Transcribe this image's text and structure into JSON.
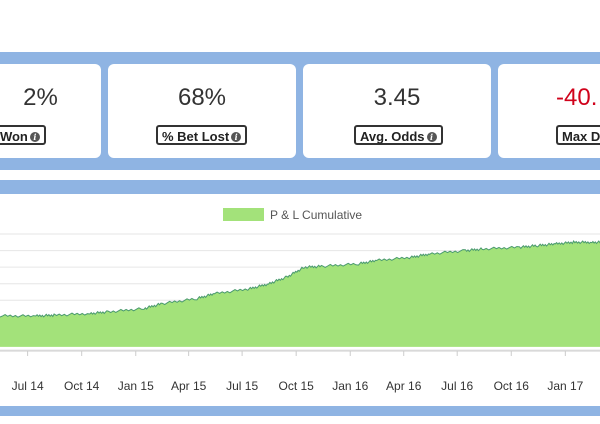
{
  "stats": [
    {
      "value": "2%",
      "label": "t Won",
      "icon": "info-icon"
    },
    {
      "value": "68%",
      "label": "% Bet Lost",
      "icon": "info-icon"
    },
    {
      "value": "3.45",
      "label": "Avg. Odds",
      "icon": "info-icon"
    },
    {
      "value": "-40.",
      "label": "Max D",
      "icon": "info-icon",
      "color": "#d0021b"
    }
  ],
  "chart_data": {
    "type": "area",
    "legend": {
      "label": "P & L Cumulative",
      "placement": "top-center",
      "color": "#a3e27a"
    },
    "x_tick_labels": [
      "Jul 14",
      "Oct 14",
      "Jan 15",
      "Apr 15",
      "Jul 15",
      "Oct 15",
      "Jan 16",
      "Apr 16",
      "Jul 16",
      "Oct 16",
      "Jan 17"
    ],
    "grid": true,
    "series": [
      {
        "name": "P & L Cumulative",
        "color": "#a3e27a",
        "line_color": "#4a9a6e",
        "x": [
          "2014-05",
          "2014-07",
          "2014-08",
          "2014-10",
          "2014-11",
          "2015-01",
          "2015-02",
          "2015-04",
          "2015-05",
          "2015-07",
          "2015-08",
          "2015-09",
          "2015-10",
          "2015-11",
          "2016-01",
          "2016-02",
          "2016-04",
          "2016-05",
          "2016-07",
          "2016-08",
          "2016-10",
          "2016-11",
          "2016-12",
          "2017-01",
          "2017-02",
          "2017-03"
        ],
        "values": [
          0.6,
          0.5,
          1,
          2,
          3,
          5,
          8,
          11,
          14,
          17,
          20,
          24,
          30,
          30.5,
          32,
          34,
          36,
          38,
          40,
          41,
          42,
          43,
          44,
          45,
          45,
          45
        ]
      }
    ]
  }
}
